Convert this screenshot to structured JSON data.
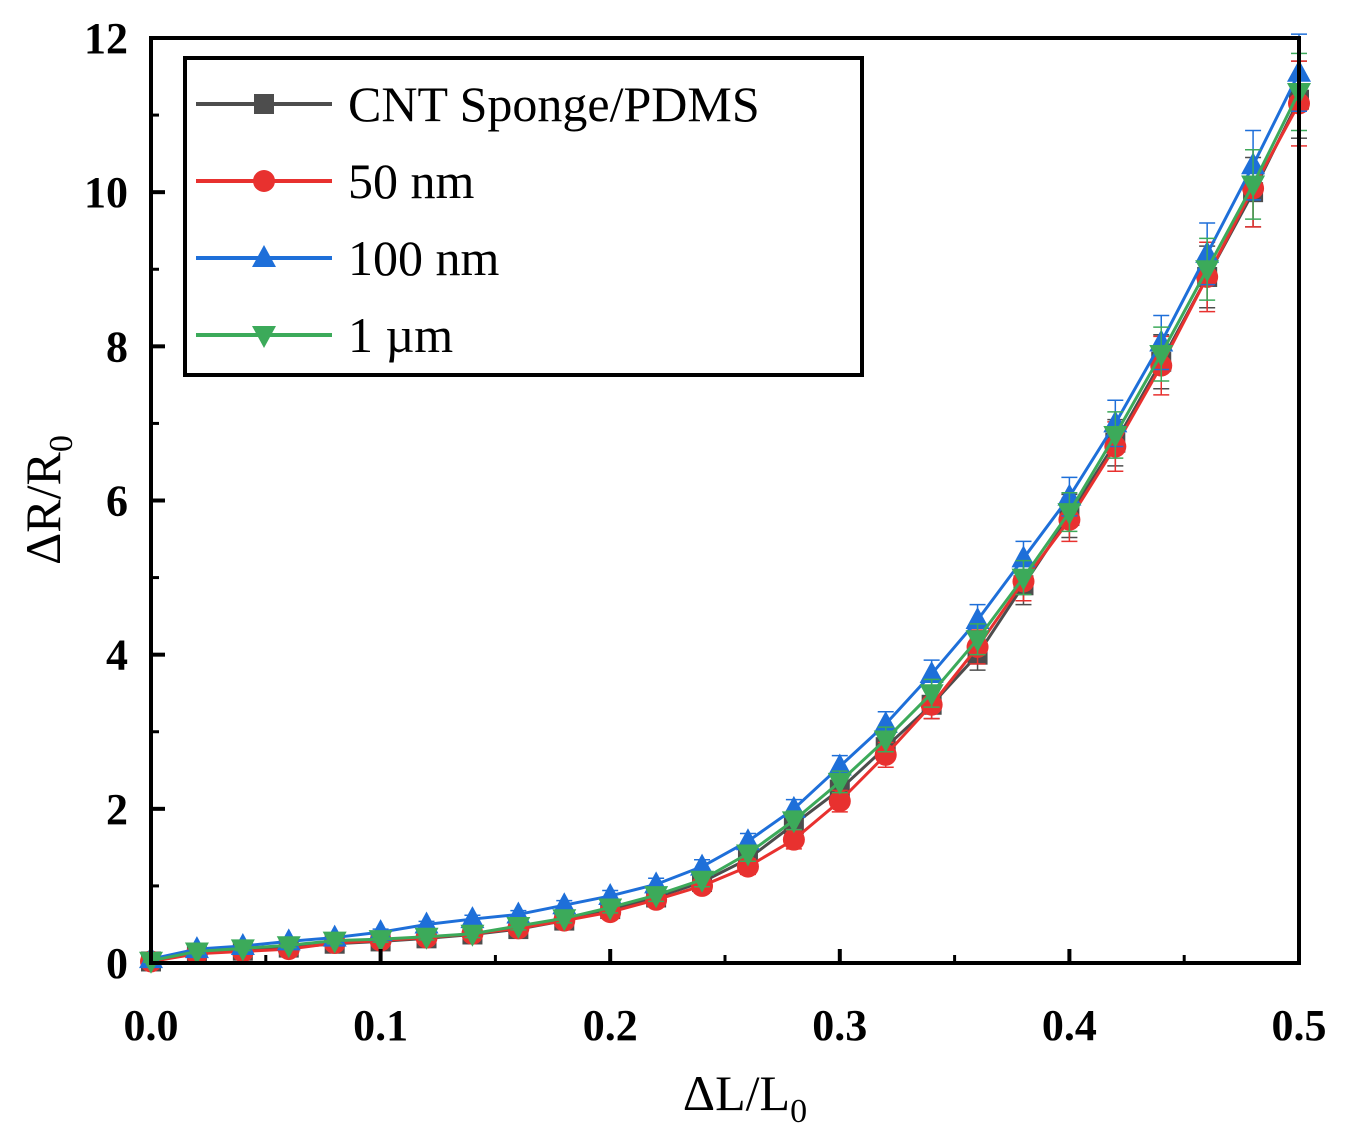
{
  "chart_data": {
    "type": "line",
    "title": "",
    "xlabel": {
      "main": "ΔL/L",
      "sub": "0"
    },
    "ylabel": {
      "main": "ΔR/R",
      "sub": "0"
    },
    "xlim": [
      0,
      0.5
    ],
    "ylim": [
      0,
      12
    ],
    "xticks": [
      0.0,
      0.1,
      0.2,
      0.3,
      0.4,
      0.5
    ],
    "xtick_labels": [
      "0.0",
      "0.1",
      "0.2",
      "0.3",
      "0.4",
      "0.5"
    ],
    "yticks": [
      0,
      2,
      4,
      6,
      8,
      10,
      12
    ],
    "ytick_labels": [
      "0",
      "2",
      "4",
      "6",
      "8",
      "10",
      "12"
    ],
    "grid": false,
    "legend_position": "top-left",
    "x": [
      0,
      0.02,
      0.04,
      0.06,
      0.08,
      0.1,
      0.12,
      0.14,
      0.16,
      0.18,
      0.2,
      0.22,
      0.24,
      0.26,
      0.28,
      0.3,
      0.32,
      0.34,
      0.36,
      0.38,
      0.4,
      0.42,
      0.44,
      0.46,
      0.48,
      0.5
    ],
    "series": [
      {
        "name": "CNT Sponge/PDMS",
        "color": "#4d4d4d",
        "marker": "square",
        "values": [
          0.02,
          0.13,
          0.16,
          0.2,
          0.25,
          0.28,
          0.32,
          0.37,
          0.44,
          0.55,
          0.7,
          0.85,
          1.05,
          1.35,
          1.8,
          2.25,
          2.8,
          3.35,
          4.0,
          4.9,
          5.8,
          6.75,
          7.8,
          8.9,
          10.0,
          11.2
        ],
        "errors": [
          0.02,
          0.03,
          0.03,
          0.03,
          0.04,
          0.04,
          0.04,
          0.05,
          0.05,
          0.06,
          0.07,
          0.08,
          0.09,
          0.1,
          0.12,
          0.14,
          0.16,
          0.18,
          0.2,
          0.25,
          0.28,
          0.3,
          0.35,
          0.4,
          0.45,
          0.5
        ]
      },
      {
        "name": "50 nm",
        "color": "#e8312f",
        "marker": "circle",
        "values": [
          0.02,
          0.12,
          0.15,
          0.18,
          0.26,
          0.29,
          0.33,
          0.38,
          0.45,
          0.55,
          0.66,
          0.82,
          1.0,
          1.25,
          1.6,
          2.1,
          2.7,
          3.35,
          4.1,
          4.95,
          5.75,
          6.7,
          7.75,
          8.9,
          10.05,
          11.15
        ],
        "errors": [
          0.02,
          0.03,
          0.03,
          0.03,
          0.04,
          0.04,
          0.04,
          0.05,
          0.05,
          0.06,
          0.07,
          0.08,
          0.09,
          0.1,
          0.12,
          0.14,
          0.16,
          0.18,
          0.22,
          0.25,
          0.28,
          0.32,
          0.38,
          0.45,
          0.5,
          0.55
        ]
      },
      {
        "name": "100 nm",
        "color": "#1e6fd9",
        "marker": "triangle-up",
        "values": [
          0.05,
          0.18,
          0.22,
          0.28,
          0.33,
          0.4,
          0.5,
          0.57,
          0.63,
          0.75,
          0.87,
          1.02,
          1.25,
          1.58,
          2.0,
          2.55,
          3.1,
          3.75,
          4.45,
          5.25,
          6.05,
          7.0,
          8.05,
          9.2,
          10.35,
          11.55
        ],
        "errors": [
          0.02,
          0.03,
          0.03,
          0.03,
          0.04,
          0.04,
          0.04,
          0.05,
          0.05,
          0.06,
          0.07,
          0.08,
          0.09,
          0.1,
          0.12,
          0.14,
          0.16,
          0.18,
          0.2,
          0.22,
          0.25,
          0.3,
          0.35,
          0.4,
          0.45,
          0.5
        ]
      },
      {
        "name": "1 µm",
        "color": "#3caa5a",
        "marker": "triangle-down",
        "values": [
          0.03,
          0.15,
          0.19,
          0.23,
          0.29,
          0.31,
          0.34,
          0.38,
          0.48,
          0.58,
          0.72,
          0.88,
          1.08,
          1.42,
          1.85,
          2.35,
          2.9,
          3.5,
          4.2,
          5.0,
          5.85,
          6.85,
          7.9,
          9.0,
          10.1,
          11.3
        ],
        "errors": [
          0.02,
          0.03,
          0.03,
          0.03,
          0.04,
          0.04,
          0.04,
          0.05,
          0.05,
          0.06,
          0.07,
          0.08,
          0.09,
          0.1,
          0.12,
          0.14,
          0.16,
          0.18,
          0.2,
          0.22,
          0.25,
          0.3,
          0.35,
          0.4,
          0.45,
          0.5
        ]
      }
    ]
  }
}
